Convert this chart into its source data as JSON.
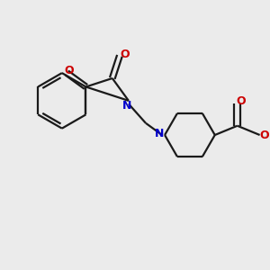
{
  "bg_color": "#ebebeb",
  "bond_color": "#1a1a1a",
  "N_color": "#0000cc",
  "O_color": "#cc0000",
  "lw": 1.6,
  "figsize": [
    3.0,
    3.0
  ],
  "dpi": 100,
  "xlim": [
    0,
    10
  ],
  "ylim": [
    0,
    10
  ]
}
